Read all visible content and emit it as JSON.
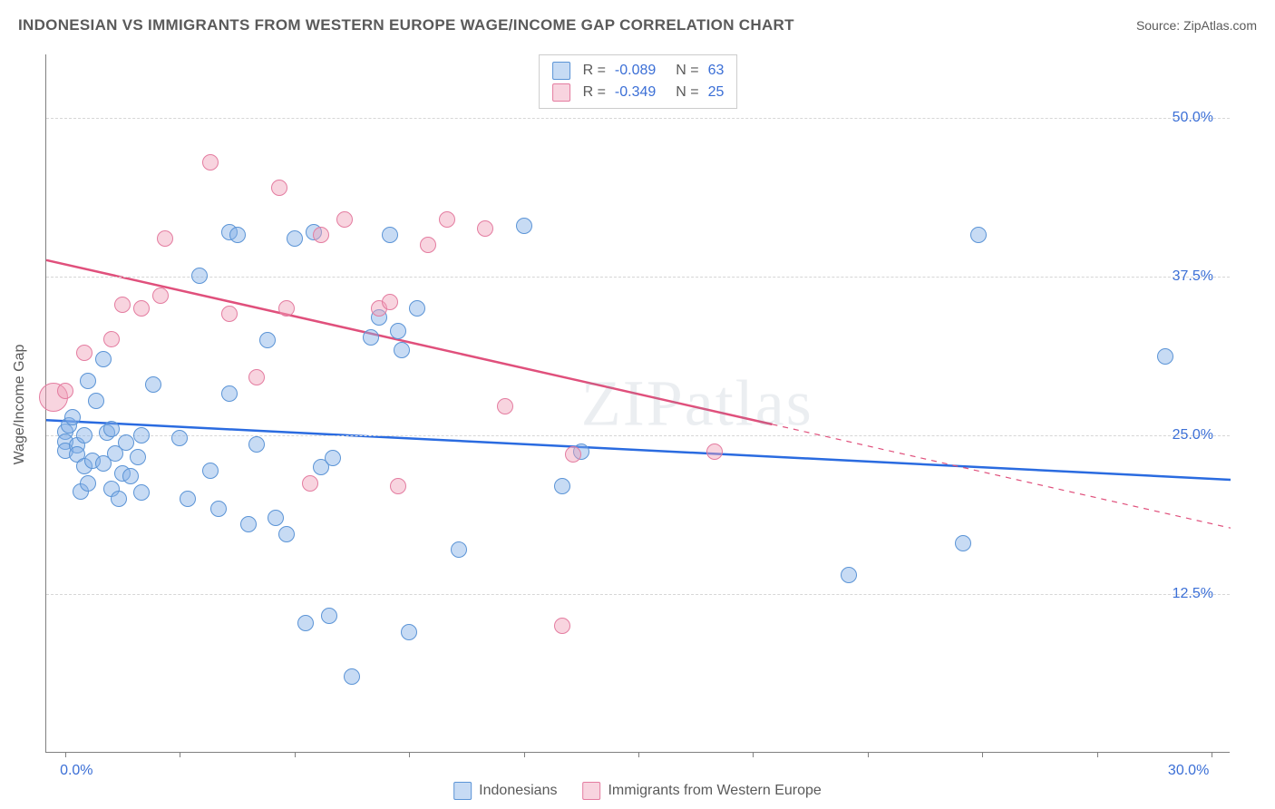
{
  "header": {
    "title": "INDONESIAN VS IMMIGRANTS FROM WESTERN EUROPE WAGE/INCOME GAP CORRELATION CHART",
    "source": "Source: ZipAtlas.com"
  },
  "chart": {
    "type": "scatter",
    "watermark": "ZIPatlas",
    "y_axis": {
      "label": "Wage/Income Gap",
      "min": 0,
      "max": 55,
      "ticks": [
        12.5,
        25.0,
        37.5,
        50.0
      ],
      "tick_labels": [
        "12.5%",
        "25.0%",
        "37.5%",
        "50.0%"
      ],
      "label_color": "#5a5a5a",
      "tick_label_color": "#3b6fd6",
      "tick_fontsize": 16
    },
    "x_axis": {
      "min": -0.5,
      "max": 30.5,
      "ticks": [
        0,
        3,
        6,
        9,
        12,
        15,
        18,
        21,
        24,
        27,
        30
      ],
      "end_labels": {
        "first": "0.0%",
        "last": "30.0%"
      },
      "tick_label_color": "#3b6fd6"
    },
    "grid_color": "#d6d6d6",
    "background_color": "#ffffff",
    "border_color": "#808080",
    "series": [
      {
        "name": "Indonesians",
        "fill": "rgba(130,175,230,0.45)",
        "stroke": "#5b94d6",
        "marker_radius": 9,
        "trend": {
          "color": "#2a6be0",
          "width": 2.5,
          "y_at_xmin": 26.2,
          "y_at_xmax": 21.5,
          "dash_from_x": 30,
          "R": "-0.089",
          "N": "63"
        },
        "points": [
          [
            0.0,
            25.3
          ],
          [
            0.0,
            24.5
          ],
          [
            0.0,
            23.8
          ],
          [
            0.1,
            25.8
          ],
          [
            0.2,
            26.4
          ],
          [
            0.3,
            24.2
          ],
          [
            0.3,
            23.5
          ],
          [
            0.4,
            20.6
          ],
          [
            0.5,
            22.6
          ],
          [
            0.5,
            25.0
          ],
          [
            0.6,
            21.2
          ],
          [
            0.6,
            29.3
          ],
          [
            0.7,
            23.0
          ],
          [
            0.8,
            27.7
          ],
          [
            1.0,
            31.0
          ],
          [
            1.0,
            22.8
          ],
          [
            1.1,
            25.2
          ],
          [
            1.2,
            25.5
          ],
          [
            1.2,
            20.8
          ],
          [
            1.3,
            23.6
          ],
          [
            1.5,
            22.0
          ],
          [
            1.6,
            24.4
          ],
          [
            1.7,
            21.8
          ],
          [
            1.9,
            23.3
          ],
          [
            2.0,
            25.0
          ],
          [
            2.0,
            20.5
          ],
          [
            2.3,
            29.0
          ],
          [
            3.0,
            24.8
          ],
          [
            3.2,
            20.0
          ],
          [
            3.5,
            37.6
          ],
          [
            3.8,
            22.2
          ],
          [
            4.0,
            19.2
          ],
          [
            4.3,
            41.0
          ],
          [
            4.5,
            40.8
          ],
          [
            4.8,
            18.0
          ],
          [
            5.0,
            24.3
          ],
          [
            5.3,
            32.5
          ],
          [
            5.5,
            18.5
          ],
          [
            5.8,
            17.2
          ],
          [
            6.0,
            40.5
          ],
          [
            6.3,
            10.2
          ],
          [
            6.5,
            41.0
          ],
          [
            6.7,
            22.5
          ],
          [
            6.9,
            10.8
          ],
          [
            7.0,
            23.2
          ],
          [
            7.5,
            6.0
          ],
          [
            8.0,
            32.7
          ],
          [
            8.2,
            34.3
          ],
          [
            8.5,
            40.8
          ],
          [
            8.7,
            33.2
          ],
          [
            8.8,
            31.7
          ],
          [
            9.0,
            9.5
          ],
          [
            9.2,
            35.0
          ],
          [
            10.3,
            16.0
          ],
          [
            12.0,
            41.5
          ],
          [
            13.0,
            21.0
          ],
          [
            13.5,
            23.7
          ],
          [
            20.5,
            14.0
          ],
          [
            23.5,
            16.5
          ],
          [
            23.9,
            40.8
          ],
          [
            28.8,
            31.2
          ],
          [
            4.3,
            28.3
          ],
          [
            1.4,
            20.0
          ]
        ]
      },
      {
        "name": "Immigrants from Western Europe",
        "fill": "rgba(240,160,185,0.45)",
        "stroke": "#e47ca0",
        "marker_radius": 9,
        "trend": {
          "color": "#e0507c",
          "width": 2.5,
          "y_at_xmin": 38.8,
          "y_at_xmax": 17.7,
          "solid_to_x": 18.5,
          "R": "-0.349",
          "N": "25"
        },
        "points": [
          [
            0.0,
            28.5
          ],
          [
            0.5,
            31.5
          ],
          [
            1.2,
            32.6
          ],
          [
            1.5,
            35.3
          ],
          [
            2.0,
            35.0
          ],
          [
            2.5,
            36.0
          ],
          [
            2.6,
            40.5
          ],
          [
            3.8,
            46.5
          ],
          [
            4.3,
            34.6
          ],
          [
            5.0,
            29.6
          ],
          [
            5.6,
            44.5
          ],
          [
            5.8,
            35.0
          ],
          [
            6.4,
            21.2
          ],
          [
            6.7,
            40.8
          ],
          [
            7.3,
            42.0
          ],
          [
            8.2,
            35.0
          ],
          [
            8.5,
            35.5
          ],
          [
            8.7,
            21.0
          ],
          [
            9.5,
            40.0
          ],
          [
            10.0,
            42.0
          ],
          [
            11.0,
            41.3
          ],
          [
            11.5,
            27.3
          ],
          [
            13.0,
            10.0
          ],
          [
            13.3,
            23.5
          ],
          [
            17.0,
            23.7
          ]
        ],
        "extra_large_point": {
          "x": -0.3,
          "y": 28.0,
          "r": 16
        }
      }
    ],
    "legend_top": {
      "r_label": "R =",
      "n_label": "N ="
    },
    "legend_bottom": {
      "items": [
        "Indonesians",
        "Immigrants from Western Europe"
      ]
    }
  }
}
